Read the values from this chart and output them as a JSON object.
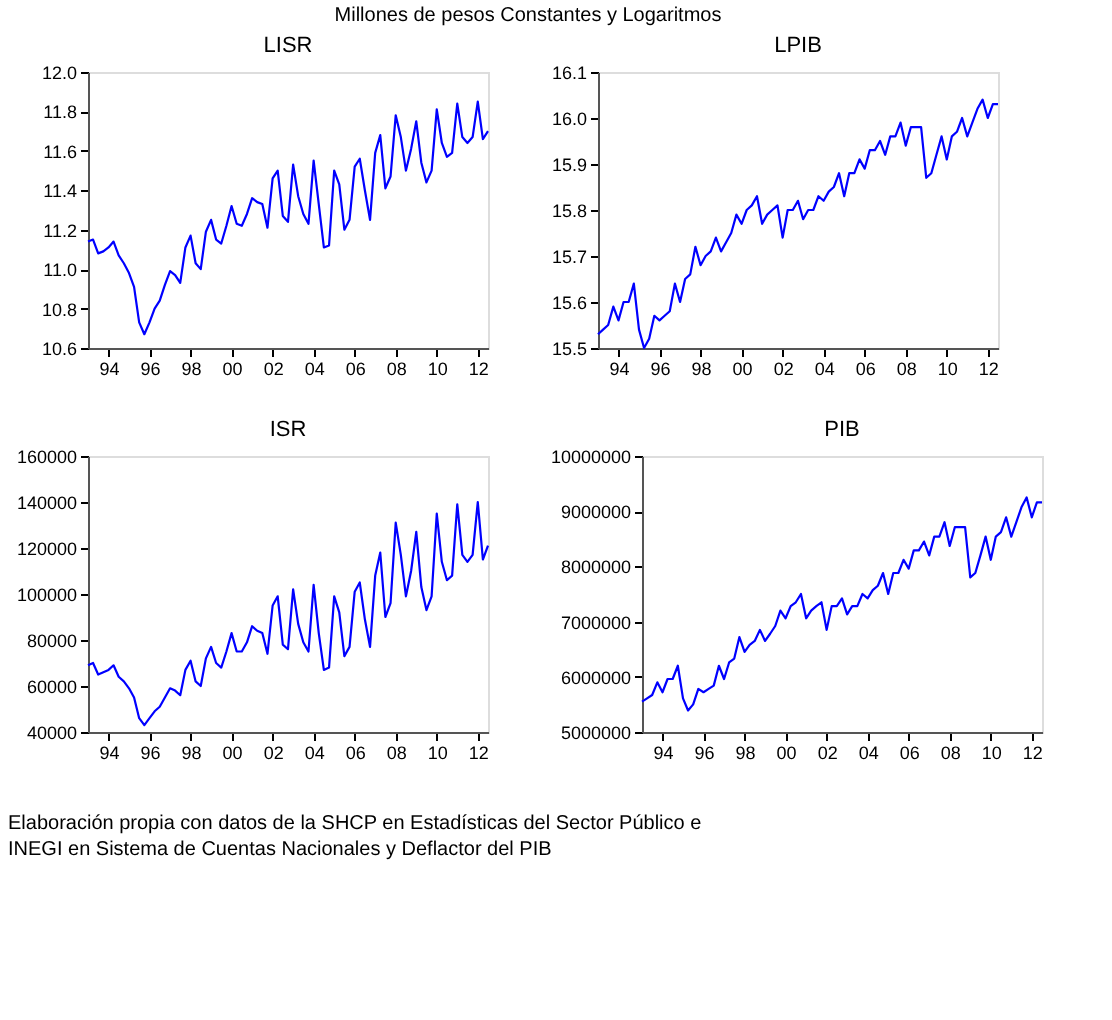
{
  "chart_data": [
    {
      "type": "line",
      "title": "LISR",
      "annotations": [
        "Millones de pesos Constantes y Logaritmos"
      ],
      "x": [
        "1993-01",
        "1993-04",
        "1993-07",
        "1993-10",
        "1994-01",
        "1994-04",
        "1994-07",
        "1994-10",
        "1995-01",
        "1995-04",
        "1995-07",
        "1995-10",
        "1996-01",
        "1996-04",
        "1996-07",
        "1996-10",
        "1997-01",
        "1997-04",
        "1997-07",
        "1997-10",
        "1998-01",
        "1998-04",
        "1998-07",
        "1998-10",
        "1999-01",
        "1999-04",
        "1999-07",
        "1999-10",
        "2000-01",
        "2000-04",
        "2000-07",
        "2000-10",
        "2001-01",
        "2001-04",
        "2001-07",
        "2001-10",
        "2002-01",
        "2002-04",
        "2002-07",
        "2002-10",
        "2003-01",
        "2003-04",
        "2003-07",
        "2003-10",
        "2004-01",
        "2004-04",
        "2004-07",
        "2004-10",
        "2005-01",
        "2005-04",
        "2005-07",
        "2005-10",
        "2006-01",
        "2006-04",
        "2006-07",
        "2006-10",
        "2007-01",
        "2007-04",
        "2007-07",
        "2007-10",
        "2008-01",
        "2008-04",
        "2008-07",
        "2008-10",
        "2009-01",
        "2009-04",
        "2009-07",
        "2009-10",
        "2010-01",
        "2010-04",
        "2010-07",
        "2010-10",
        "2011-01",
        "2011-04",
        "2011-07",
        "2011-10",
        "2012-01",
        "2012-04",
        "2012-07"
      ],
      "series": [
        {
          "color": "#0000ff",
          "values": [
            11.14,
            11.15,
            11.08,
            11.09,
            11.11,
            11.14,
            11.07,
            11.03,
            10.98,
            10.91,
            10.73,
            10.67,
            10.73,
            10.8,
            10.84,
            10.92,
            10.99,
            10.97,
            10.93,
            11.11,
            11.17,
            11.03,
            11.0,
            11.19,
            11.25,
            11.15,
            11.13,
            11.22,
            11.32,
            11.23,
            11.22,
            11.28,
            11.36,
            11.34,
            11.33,
            11.21,
            11.46,
            11.5,
            11.27,
            11.24,
            11.53,
            11.37,
            11.28,
            11.23,
            11.55,
            11.33,
            11.11,
            11.12,
            11.5,
            11.43,
            11.2,
            11.25,
            11.52,
            11.56,
            11.4,
            11.25,
            11.59,
            11.68,
            11.41,
            11.47,
            11.78,
            11.67,
            11.5,
            11.61,
            11.75,
            11.54,
            11.44,
            11.5,
            11.81,
            11.64,
            11.57,
            11.59,
            11.84,
            11.67,
            11.64,
            11.67,
            11.85,
            11.66,
            11.7
          ]
        }
      ],
      "xlim": [
        "1993-01",
        "2012-07"
      ],
      "xticks": [
        {
          "value": "1994",
          "label": "94"
        },
        {
          "value": "1996",
          "label": "96"
        },
        {
          "value": "1998",
          "label": "98"
        },
        {
          "value": "2000",
          "label": "00"
        },
        {
          "value": "2002",
          "label": "02"
        },
        {
          "value": "2004",
          "label": "04"
        },
        {
          "value": "2006",
          "label": "06"
        },
        {
          "value": "2008",
          "label": "08"
        },
        {
          "value": "2010",
          "label": "10"
        },
        {
          "value": "2012",
          "label": "12"
        }
      ],
      "ylim": [
        10.6,
        12.0
      ],
      "yticks": [
        {
          "value": 10.6,
          "label": "10.6"
        },
        {
          "value": 10.8,
          "label": "10.8"
        },
        {
          "value": 11.0,
          "label": "11.0"
        },
        {
          "value": 11.2,
          "label": "11.2"
        },
        {
          "value": 11.4,
          "label": "11.4"
        },
        {
          "value": 11.6,
          "label": "11.6"
        },
        {
          "value": 11.8,
          "label": "11.8"
        },
        {
          "value": 12.0,
          "label": "12.0"
        }
      ],
      "grid": false,
      "marker": "none",
      "line_style": "solid"
    },
    {
      "type": "line",
      "title": "LPIB",
      "x": [
        "1993-01",
        "1993-04",
        "1993-07",
        "1993-10",
        "1994-01",
        "1994-04",
        "1994-07",
        "1994-10",
        "1995-01",
        "1995-04",
        "1995-07",
        "1995-10",
        "1996-01",
        "1996-04",
        "1996-07",
        "1996-10",
        "1997-01",
        "1997-04",
        "1997-07",
        "1997-10",
        "1998-01",
        "1998-04",
        "1998-07",
        "1998-10",
        "1999-01",
        "1999-04",
        "1999-07",
        "1999-10",
        "2000-01",
        "2000-04",
        "2000-07",
        "2000-10",
        "2001-01",
        "2001-04",
        "2001-07",
        "2001-10",
        "2002-01",
        "2002-04",
        "2002-07",
        "2002-10",
        "2003-01",
        "2003-04",
        "2003-07",
        "2003-10",
        "2004-01",
        "2004-04",
        "2004-07",
        "2004-10",
        "2005-01",
        "2005-04",
        "2005-07",
        "2005-10",
        "2006-01",
        "2006-04",
        "2006-07",
        "2006-10",
        "2007-01",
        "2007-04",
        "2007-07",
        "2007-10",
        "2008-01",
        "2008-04",
        "2008-07",
        "2008-10",
        "2009-01",
        "2009-04",
        "2009-07",
        "2009-10",
        "2010-01",
        "2010-04",
        "2010-07",
        "2010-10",
        "2011-01",
        "2011-04",
        "2011-07",
        "2011-10",
        "2012-01",
        "2012-04",
        "2012-07"
      ],
      "series": [
        {
          "color": "#0000ff",
          "values": [
            15.53,
            15.54,
            15.55,
            15.59,
            15.56,
            15.6,
            15.6,
            15.64,
            15.54,
            15.5,
            15.52,
            15.57,
            15.56,
            15.57,
            15.58,
            15.64,
            15.6,
            15.65,
            15.66,
            15.72,
            15.68,
            15.7,
            15.71,
            15.74,
            15.71,
            15.73,
            15.75,
            15.79,
            15.77,
            15.8,
            15.81,
            15.83,
            15.77,
            15.79,
            15.8,
            15.81,
            15.74,
            15.8,
            15.8,
            15.82,
            15.78,
            15.8,
            15.8,
            15.83,
            15.82,
            15.84,
            15.85,
            15.88,
            15.83,
            15.88,
            15.88,
            15.91,
            15.89,
            15.93,
            15.93,
            15.95,
            15.92,
            15.96,
            15.96,
            15.99,
            15.94,
            15.98,
            15.98,
            15.98,
            15.87,
            15.88,
            15.92,
            15.96,
            15.91,
            15.96,
            15.97,
            16.0,
            15.96,
            15.99,
            16.02,
            16.04,
            16.0,
            16.03,
            16.03
          ]
        }
      ],
      "xlim": [
        "1993-01",
        "2012-07"
      ],
      "xticks": [
        {
          "value": "1994",
          "label": "94"
        },
        {
          "value": "1996",
          "label": "96"
        },
        {
          "value": "1998",
          "label": "98"
        },
        {
          "value": "2000",
          "label": "00"
        },
        {
          "value": "2002",
          "label": "02"
        },
        {
          "value": "2004",
          "label": "04"
        },
        {
          "value": "2006",
          "label": "06"
        },
        {
          "value": "2008",
          "label": "08"
        },
        {
          "value": "2010",
          "label": "10"
        },
        {
          "value": "2012",
          "label": "12"
        }
      ],
      "ylim": [
        15.5,
        16.1
      ],
      "yticks": [
        15.5,
        15.6,
        15.7,
        15.8,
        15.9,
        {
          "value": 16.0,
          "label": "16.0"
        },
        16.1
      ],
      "grid": false,
      "marker": "none",
      "line_style": "solid"
    },
    {
      "type": "line",
      "title": "ISR",
      "x": [
        "1993-01",
        "1993-04",
        "1993-07",
        "1993-10",
        "1994-01",
        "1994-04",
        "1994-07",
        "1994-10",
        "1995-01",
        "1995-04",
        "1995-07",
        "1995-10",
        "1996-01",
        "1996-04",
        "1996-07",
        "1996-10",
        "1997-01",
        "1997-04",
        "1997-07",
        "1997-10",
        "1998-01",
        "1998-04",
        "1998-07",
        "1998-10",
        "1999-01",
        "1999-04",
        "1999-07",
        "1999-10",
        "2000-01",
        "2000-04",
        "2000-07",
        "2000-10",
        "2001-01",
        "2001-04",
        "2001-07",
        "2001-10",
        "2002-01",
        "2002-04",
        "2002-07",
        "2002-10",
        "2003-01",
        "2003-04",
        "2003-07",
        "2003-10",
        "2004-01",
        "2004-04",
        "2004-07",
        "2004-10",
        "2005-01",
        "2005-04",
        "2005-07",
        "2005-10",
        "2006-01",
        "2006-04",
        "2006-07",
        "2006-10",
        "2007-01",
        "2007-04",
        "2007-07",
        "2007-10",
        "2008-01",
        "2008-04",
        "2008-07",
        "2008-10",
        "2009-01",
        "2009-04",
        "2009-07",
        "2009-10",
        "2010-01",
        "2010-04",
        "2010-07",
        "2010-10",
        "2011-01",
        "2011-04",
        "2011-07",
        "2011-10",
        "2012-01",
        "2012-04",
        "2012-07"
      ],
      "series": [
        {
          "color": "#0000ff",
          "values": [
            69000,
            70000,
            65000,
            66000,
            67000,
            69000,
            64000,
            62000,
            59000,
            55000,
            46000,
            43000,
            46000,
            49000,
            51000,
            55000,
            59000,
            58000,
            56000,
            67000,
            71000,
            62000,
            60000,
            72000,
            77000,
            70000,
            68000,
            75000,
            83000,
            75000,
            75000,
            79000,
            86000,
            84000,
            83000,
            74000,
            95000,
            99000,
            78000,
            76000,
            102000,
            87000,
            79000,
            75000,
            104000,
            83000,
            67000,
            68000,
            99000,
            92000,
            73000,
            77000,
            101000,
            105000,
            89000,
            77000,
            108000,
            118000,
            90000,
            96000,
            131000,
            117000,
            99000,
            110000,
            127000,
            103000,
            93000,
            99000,
            135000,
            114000,
            106000,
            108000,
            139000,
            117000,
            114000,
            117000,
            140000,
            115000,
            121000
          ]
        }
      ],
      "xlim": [
        "1993-01",
        "2012-07"
      ],
      "xticks": [
        {
          "value": "1994",
          "label": "94"
        },
        {
          "value": "1996",
          "label": "96"
        },
        {
          "value": "1998",
          "label": "98"
        },
        {
          "value": "2000",
          "label": "00"
        },
        {
          "value": "2002",
          "label": "02"
        },
        {
          "value": "2004",
          "label": "04"
        },
        {
          "value": "2006",
          "label": "06"
        },
        {
          "value": "2008",
          "label": "08"
        },
        {
          "value": "2010",
          "label": "10"
        },
        {
          "value": "2012",
          "label": "12"
        }
      ],
      "ylim": [
        40000,
        160000
      ],
      "yticks": [
        40000,
        60000,
        80000,
        100000,
        120000,
        140000,
        160000
      ],
      "grid": false,
      "marker": "none",
      "line_style": "solid"
    },
    {
      "type": "line",
      "title": "PIB",
      "annotations": [
        "Elaboración propia con datos de la SHCP en Estadísticas del Sector Público e",
        "INEGI en Sistema de Cuentas Nacionales y Deflactor del PIB"
      ],
      "x": [
        "1993-01",
        "1993-04",
        "1993-07",
        "1993-10",
        "1994-01",
        "1994-04",
        "1994-07",
        "1994-10",
        "1995-01",
        "1995-04",
        "1995-07",
        "1995-10",
        "1996-01",
        "1996-04",
        "1996-07",
        "1996-10",
        "1997-01",
        "1997-04",
        "1997-07",
        "1997-10",
        "1998-01",
        "1998-04",
        "1998-07",
        "1998-10",
        "1999-01",
        "1999-04",
        "1999-07",
        "1999-10",
        "2000-01",
        "2000-04",
        "2000-07",
        "2000-10",
        "2001-01",
        "2001-04",
        "2001-07",
        "2001-10",
        "2002-01",
        "2002-04",
        "2002-07",
        "2002-10",
        "2003-01",
        "2003-04",
        "2003-07",
        "2003-10",
        "2004-01",
        "2004-04",
        "2004-07",
        "2004-10",
        "2005-01",
        "2005-04",
        "2005-07",
        "2005-10",
        "2006-01",
        "2006-04",
        "2006-07",
        "2006-10",
        "2007-01",
        "2007-04",
        "2007-07",
        "2007-10",
        "2008-01",
        "2008-04",
        "2008-07",
        "2008-10",
        "2009-01",
        "2009-04",
        "2009-07",
        "2009-10",
        "2010-01",
        "2010-04",
        "2010-07",
        "2010-10",
        "2011-01",
        "2011-04",
        "2011-07",
        "2011-10",
        "2012-01",
        "2012-04",
        "2012-07"
      ],
      "series": [
        {
          "color": "#0000ff",
          "values": [
            5550000,
            5610000,
            5670000,
            5900000,
            5720000,
            5960000,
            5960000,
            6200000,
            5610000,
            5390000,
            5500000,
            5780000,
            5720000,
            5780000,
            5840000,
            6200000,
            5960000,
            6260000,
            6330000,
            6720000,
            6450000,
            6580000,
            6650000,
            6850000,
            6650000,
            6780000,
            6920000,
            7200000,
            7060000,
            7280000,
            7350000,
            7500000,
            7060000,
            7200000,
            7280000,
            7350000,
            6850000,
            7280000,
            7280000,
            7420000,
            7130000,
            7280000,
            7280000,
            7500000,
            7420000,
            7570000,
            7650000,
            7880000,
            7500000,
            7880000,
            7880000,
            8120000,
            7960000,
            8290000,
            8290000,
            8450000,
            8200000,
            8540000,
            8540000,
            8800000,
            8370000,
            8710000,
            8710000,
            8710000,
            7800000,
            7880000,
            8200000,
            8540000,
            8120000,
            8540000,
            8620000,
            8890000,
            8540000,
            8800000,
            9070000,
            9250000,
            8890000,
            9160000,
            9160000
          ]
        }
      ],
      "xlim": [
        "1993-01",
        "2012-07"
      ],
      "xticks": [
        {
          "value": "1994",
          "label": "94"
        },
        {
          "value": "1996",
          "label": "96"
        },
        {
          "value": "1998",
          "label": "98"
        },
        {
          "value": "2000",
          "label": "00"
        },
        {
          "value": "2002",
          "label": "02"
        },
        {
          "value": "2004",
          "label": "04"
        },
        {
          "value": "2006",
          "label": "06"
        },
        {
          "value": "2008",
          "label": "08"
        },
        {
          "value": "2010",
          "label": "10"
        },
        {
          "value": "2012",
          "label": "12"
        }
      ],
      "ylim": [
        5000000,
        10000000
      ],
      "yticks": [
        5000000,
        6000000,
        7000000,
        8000000,
        9000000,
        10000000
      ],
      "grid": false,
      "marker": "none",
      "line_style": "solid"
    }
  ]
}
